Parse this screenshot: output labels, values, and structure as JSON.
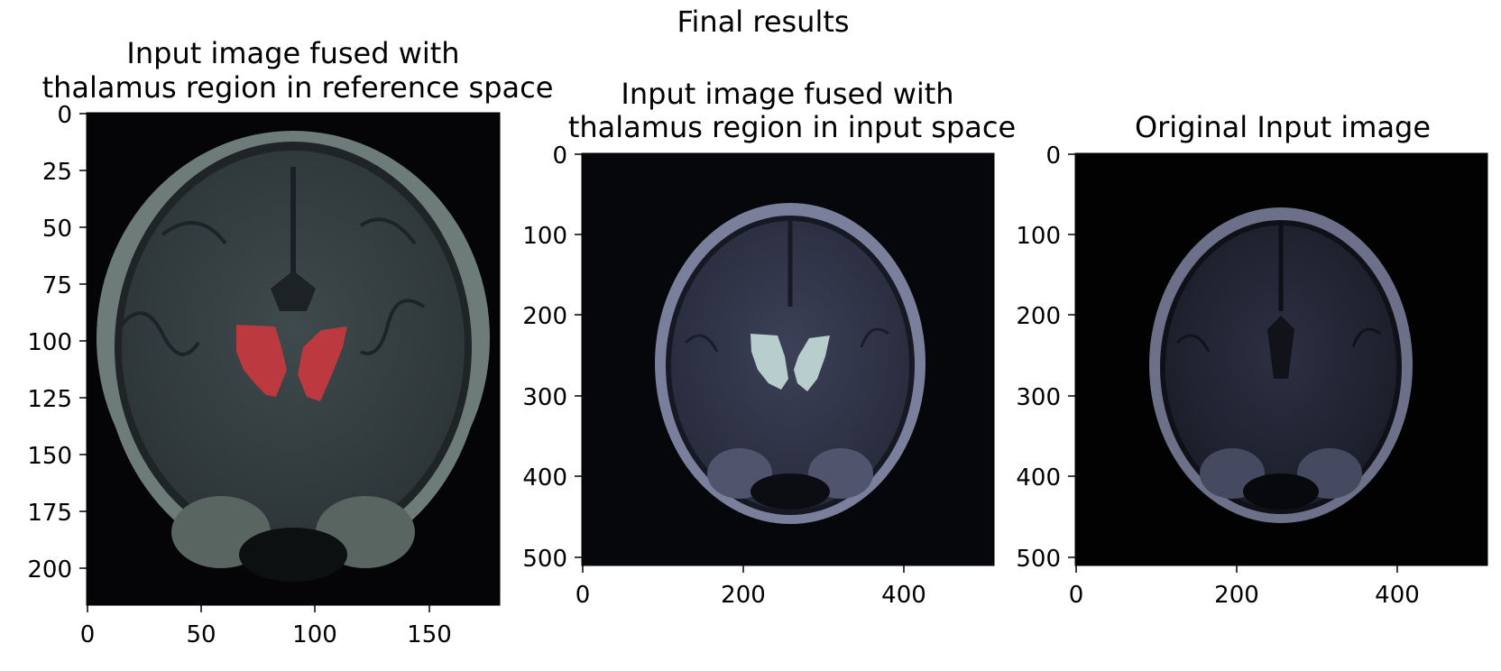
{
  "figure": {
    "suptitle": "Final results"
  },
  "panels": [
    {
      "title_line1": "Input image fused with",
      "title_line2": "thalamus region in reference space",
      "overlay_color": "#e0393e",
      "x_ticks": [
        "0",
        "50",
        "100",
        "150"
      ],
      "y_ticks": [
        "0",
        "25",
        "50",
        "75",
        "100",
        "125",
        "150",
        "175",
        "200"
      ]
    },
    {
      "title_line1": "Input image fused with",
      "title_line2": "thalamus region in input space",
      "overlay_color": "#cfe8e2",
      "x_ticks": [
        "0",
        "200",
        "400"
      ],
      "y_ticks": [
        "0",
        "100",
        "200",
        "300",
        "400",
        "500"
      ]
    },
    {
      "title_line1": "Original Input image",
      "x_ticks": [
        "0",
        "200",
        "400"
      ],
      "y_ticks": [
        "0",
        "100",
        "200",
        "300",
        "400",
        "500"
      ]
    }
  ]
}
